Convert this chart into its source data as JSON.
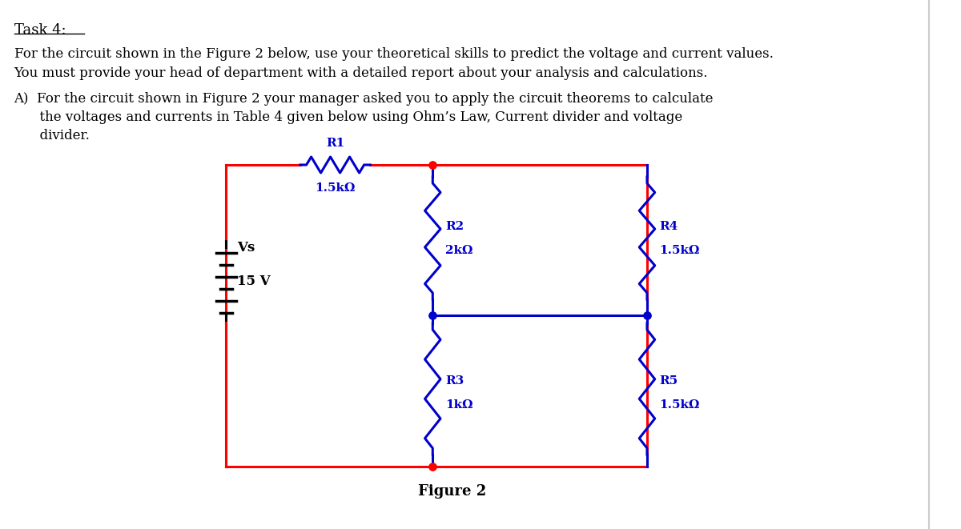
{
  "bg_color": "#ffffff",
  "text_color": "#000000",
  "red_color": "#ff0000",
  "blue_color": "#0000cc",
  "black_color": "#000000",
  "title": "Task 4:",
  "para1": "For the circuit shown in the Figure 2 below, use your theoretical skills to predict the voltage and current values.",
  "para2": "You must provide your head of department with a detailed report about your analysis and calculations.",
  "para3_a": "A)  For the circuit shown in Figure 2 your manager asked you to apply the circuit theorems to calculate",
  "para3_b": "      the voltages and currents in Table 4 given below using Ohm’s Law, Current divider and voltage",
  "para3_c": "      divider.",
  "fig_label": "Figure 2",
  "R1_label": "R1",
  "R1_val": "1.5kΩ",
  "R2_label": "R2",
  "R2_val": "2kΩ",
  "R3_label": "R3",
  "R3_val": "1kΩ",
  "R4_label": "R4",
  "R4_val": "1.5kΩ",
  "R5_label": "R5",
  "R5_val": "1.5kΩ",
  "Vs_label": "Vs",
  "Vs_val": "15 V",
  "font_size_title": 13,
  "font_size_body": 12,
  "font_size_circuit": 11
}
